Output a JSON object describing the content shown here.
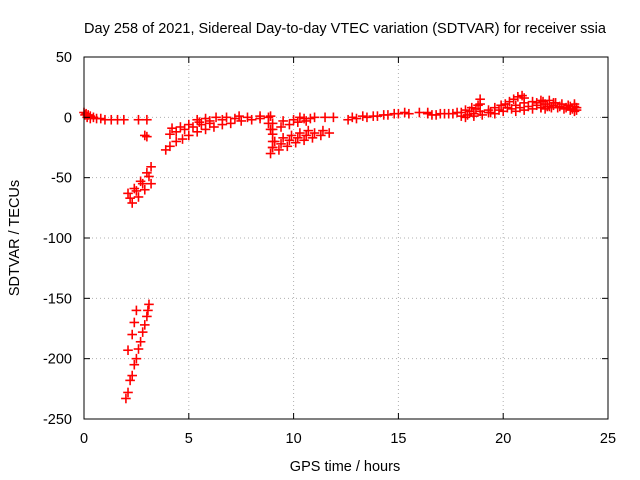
{
  "chart_data": {
    "type": "scatter",
    "title": "Day 258 of 2021, Sidereal Day-to-day VTEC variation (SDTVAR) for receiver ssia",
    "xlabel": "GPS time / hours",
    "ylabel": "SDTVAR / TECUs",
    "xlim": [
      0,
      25
    ],
    "ylim": [
      -250,
      50
    ],
    "xticks": [
      "0",
      "5",
      "10",
      "15",
      "20",
      "25"
    ],
    "yticks": [
      "50",
      "0",
      "-50",
      "-100",
      "-150",
      "-200",
      "-250"
    ],
    "grid": true,
    "marker": "plus",
    "color": "#ff0000",
    "series": [
      {
        "points": [
          [
            0.0,
            4
          ],
          [
            0.1,
            3
          ],
          [
            0.2,
            2
          ],
          [
            0.3,
            1
          ],
          [
            0.45,
            0
          ],
          [
            0.6,
            -1
          ],
          [
            0.8,
            -1
          ],
          [
            1.0,
            -2
          ],
          [
            1.3,
            -2
          ],
          [
            1.6,
            -2
          ],
          [
            1.9,
            -2
          ],
          [
            0.05,
            2
          ],
          [
            0.15,
            0
          ],
          [
            0.3,
            -1
          ],
          [
            2.6,
            -2
          ],
          [
            2.1,
            -193
          ],
          [
            2.3,
            -180
          ],
          [
            2.4,
            -170
          ],
          [
            2.5,
            -160
          ],
          [
            2.0,
            -233
          ],
          [
            2.2,
            -218
          ],
          [
            2.4,
            -205
          ],
          [
            2.6,
            -192
          ],
          [
            2.8,
            -178
          ],
          [
            3.0,
            -165
          ],
          [
            3.1,
            -155
          ],
          [
            2.1,
            -228
          ],
          [
            2.3,
            -214
          ],
          [
            2.5,
            -200
          ],
          [
            2.7,
            -186
          ],
          [
            2.9,
            -172
          ],
          [
            3.05,
            -160
          ],
          [
            2.2,
            -67
          ],
          [
            2.5,
            -61
          ],
          [
            2.8,
            -55
          ],
          [
            3.1,
            -49
          ],
          [
            2.1,
            -63
          ],
          [
            2.4,
            -59
          ],
          [
            2.7,
            -53
          ],
          [
            3.0,
            -46
          ],
          [
            3.2,
            -41
          ],
          [
            2.3,
            -71
          ],
          [
            2.6,
            -66
          ],
          [
            2.9,
            -60
          ],
          [
            3.2,
            -55
          ],
          [
            2.9,
            -15
          ],
          [
            3.0,
            -16
          ],
          [
            3.0,
            -2
          ],
          [
            3.9,
            -27
          ],
          [
            4.1,
            -24
          ],
          [
            4.4,
            -20
          ],
          [
            4.7,
            -18
          ],
          [
            5.0,
            -15
          ],
          [
            5.4,
            -12
          ],
          [
            5.8,
            -10
          ],
          [
            6.2,
            -8
          ],
          [
            6.6,
            -6
          ],
          [
            7.0,
            -5
          ],
          [
            7.5,
            -3
          ],
          [
            8.0,
            -2
          ],
          [
            8.4,
            -1
          ],
          [
            8.8,
            0
          ],
          [
            4.1,
            -14
          ],
          [
            4.4,
            -12
          ],
          [
            4.8,
            -10
          ],
          [
            5.2,
            -8
          ],
          [
            5.6,
            -6
          ],
          [
            6.0,
            -5
          ],
          [
            4.2,
            -9
          ],
          [
            4.6,
            -8
          ],
          [
            5.0,
            -6
          ],
          [
            5.5,
            -4
          ],
          [
            6.0,
            -3
          ],
          [
            6.6,
            -2
          ],
          [
            7.2,
            -1
          ],
          [
            7.8,
            0
          ],
          [
            8.4,
            1
          ],
          [
            8.9,
            1
          ],
          [
            5.4,
            -2
          ],
          [
            5.8,
            -1
          ],
          [
            6.3,
            0
          ],
          [
            6.8,
            0
          ],
          [
            7.4,
            1
          ],
          [
            8.8,
            -5
          ],
          [
            8.9,
            -10
          ],
          [
            9.0,
            -14
          ],
          [
            9.0,
            -20
          ],
          [
            9.0,
            -25
          ],
          [
            8.9,
            -30
          ],
          [
            9.3,
            -27
          ],
          [
            9.7,
            -24
          ],
          [
            10.1,
            -21
          ],
          [
            10.5,
            -19
          ],
          [
            10.9,
            -17
          ],
          [
            11.3,
            -15
          ],
          [
            11.7,
            -13
          ],
          [
            9.0,
            -25
          ],
          [
            9.4,
            -22
          ],
          [
            9.8,
            -19
          ],
          [
            10.2,
            -17
          ],
          [
            10.6,
            -15
          ],
          [
            11.0,
            -13
          ],
          [
            11.4,
            -11
          ],
          [
            9.1,
            -20
          ],
          [
            9.5,
            -17
          ],
          [
            9.9,
            -15
          ],
          [
            10.3,
            -13
          ],
          [
            10.7,
            -11
          ],
          [
            9.0,
            -10
          ],
          [
            9.4,
            -8
          ],
          [
            9.8,
            -6
          ],
          [
            10.2,
            -4
          ],
          [
            10.6,
            -3
          ],
          [
            9.0,
            -5
          ],
          [
            9.5,
            -3
          ],
          [
            10.0,
            -2
          ],
          [
            10.5,
            -1
          ],
          [
            11.0,
            0
          ],
          [
            11.5,
            0
          ],
          [
            11.9,
            0
          ],
          [
            10.3,
            0
          ],
          [
            10.8,
            -1
          ],
          [
            12.6,
            -2
          ],
          [
            13.0,
            -1
          ],
          [
            13.5,
            0
          ],
          [
            14.0,
            1
          ],
          [
            14.5,
            2
          ],
          [
            15.0,
            3
          ],
          [
            15.5,
            3
          ],
          [
            16.0,
            4
          ],
          [
            16.4,
            4
          ],
          [
            12.8,
            0
          ],
          [
            13.3,
            1
          ],
          [
            13.8,
            1
          ],
          [
            14.3,
            2
          ],
          [
            14.8,
            3
          ],
          [
            15.3,
            4
          ],
          [
            16.4,
            3
          ],
          [
            16.8,
            2
          ],
          [
            17.2,
            3
          ],
          [
            17.6,
            3
          ],
          [
            18.0,
            4
          ],
          [
            18.4,
            5
          ],
          [
            18.7,
            7
          ],
          [
            18.9,
            11
          ],
          [
            16.6,
            2
          ],
          [
            17.0,
            3
          ],
          [
            17.4,
            3
          ],
          [
            17.8,
            4
          ],
          [
            18.2,
            6
          ],
          [
            18.5,
            8
          ],
          [
            18.8,
            10
          ],
          [
            18.9,
            15
          ],
          [
            18.0,
            1
          ],
          [
            18.3,
            2
          ],
          [
            18.6,
            3
          ],
          [
            18.9,
            5
          ],
          [
            18.2,
            0
          ],
          [
            18.6,
            1
          ],
          [
            19.0,
            2
          ],
          [
            19.3,
            4
          ],
          [
            19.3,
            6
          ],
          [
            19.6,
            8
          ],
          [
            19.9,
            10
          ],
          [
            20.1,
            11
          ],
          [
            20.3,
            13
          ],
          [
            20.5,
            15
          ],
          [
            20.7,
            17
          ],
          [
            20.9,
            18
          ],
          [
            21.0,
            16
          ],
          [
            19.4,
            4
          ],
          [
            19.8,
            6
          ],
          [
            20.2,
            8
          ],
          [
            20.6,
            10
          ],
          [
            21.0,
            12
          ],
          [
            21.4,
            13
          ],
          [
            21.8,
            14
          ],
          [
            19.6,
            3
          ],
          [
            20.0,
            5
          ],
          [
            20.4,
            7
          ],
          [
            20.8,
            8
          ],
          [
            21.2,
            9
          ],
          [
            21.6,
            10
          ],
          [
            22.0,
            11
          ],
          [
            22.4,
            12
          ],
          [
            20.6,
            5
          ],
          [
            21.0,
            6
          ],
          [
            21.4,
            7
          ],
          [
            21.8,
            8
          ],
          [
            22.2,
            9
          ],
          [
            21.6,
            12
          ],
          [
            21.9,
            13
          ],
          [
            22.2,
            14
          ],
          [
            22.5,
            12
          ],
          [
            22.8,
            11
          ],
          [
            23.1,
            10
          ],
          [
            23.4,
            9
          ],
          [
            21.8,
            8
          ],
          [
            22.1,
            9
          ],
          [
            22.4,
            10
          ],
          [
            22.7,
            9
          ],
          [
            23.0,
            8
          ],
          [
            23.3,
            7
          ],
          [
            23.5,
            6
          ],
          [
            22.0,
            7
          ],
          [
            22.3,
            8
          ],
          [
            22.6,
            8
          ],
          [
            22.9,
            7
          ],
          [
            23.2,
            6
          ],
          [
            23.4,
            5
          ],
          [
            23.2,
            9
          ],
          [
            23.4,
            11
          ],
          [
            23.5,
            8
          ]
        ]
      }
    ]
  }
}
